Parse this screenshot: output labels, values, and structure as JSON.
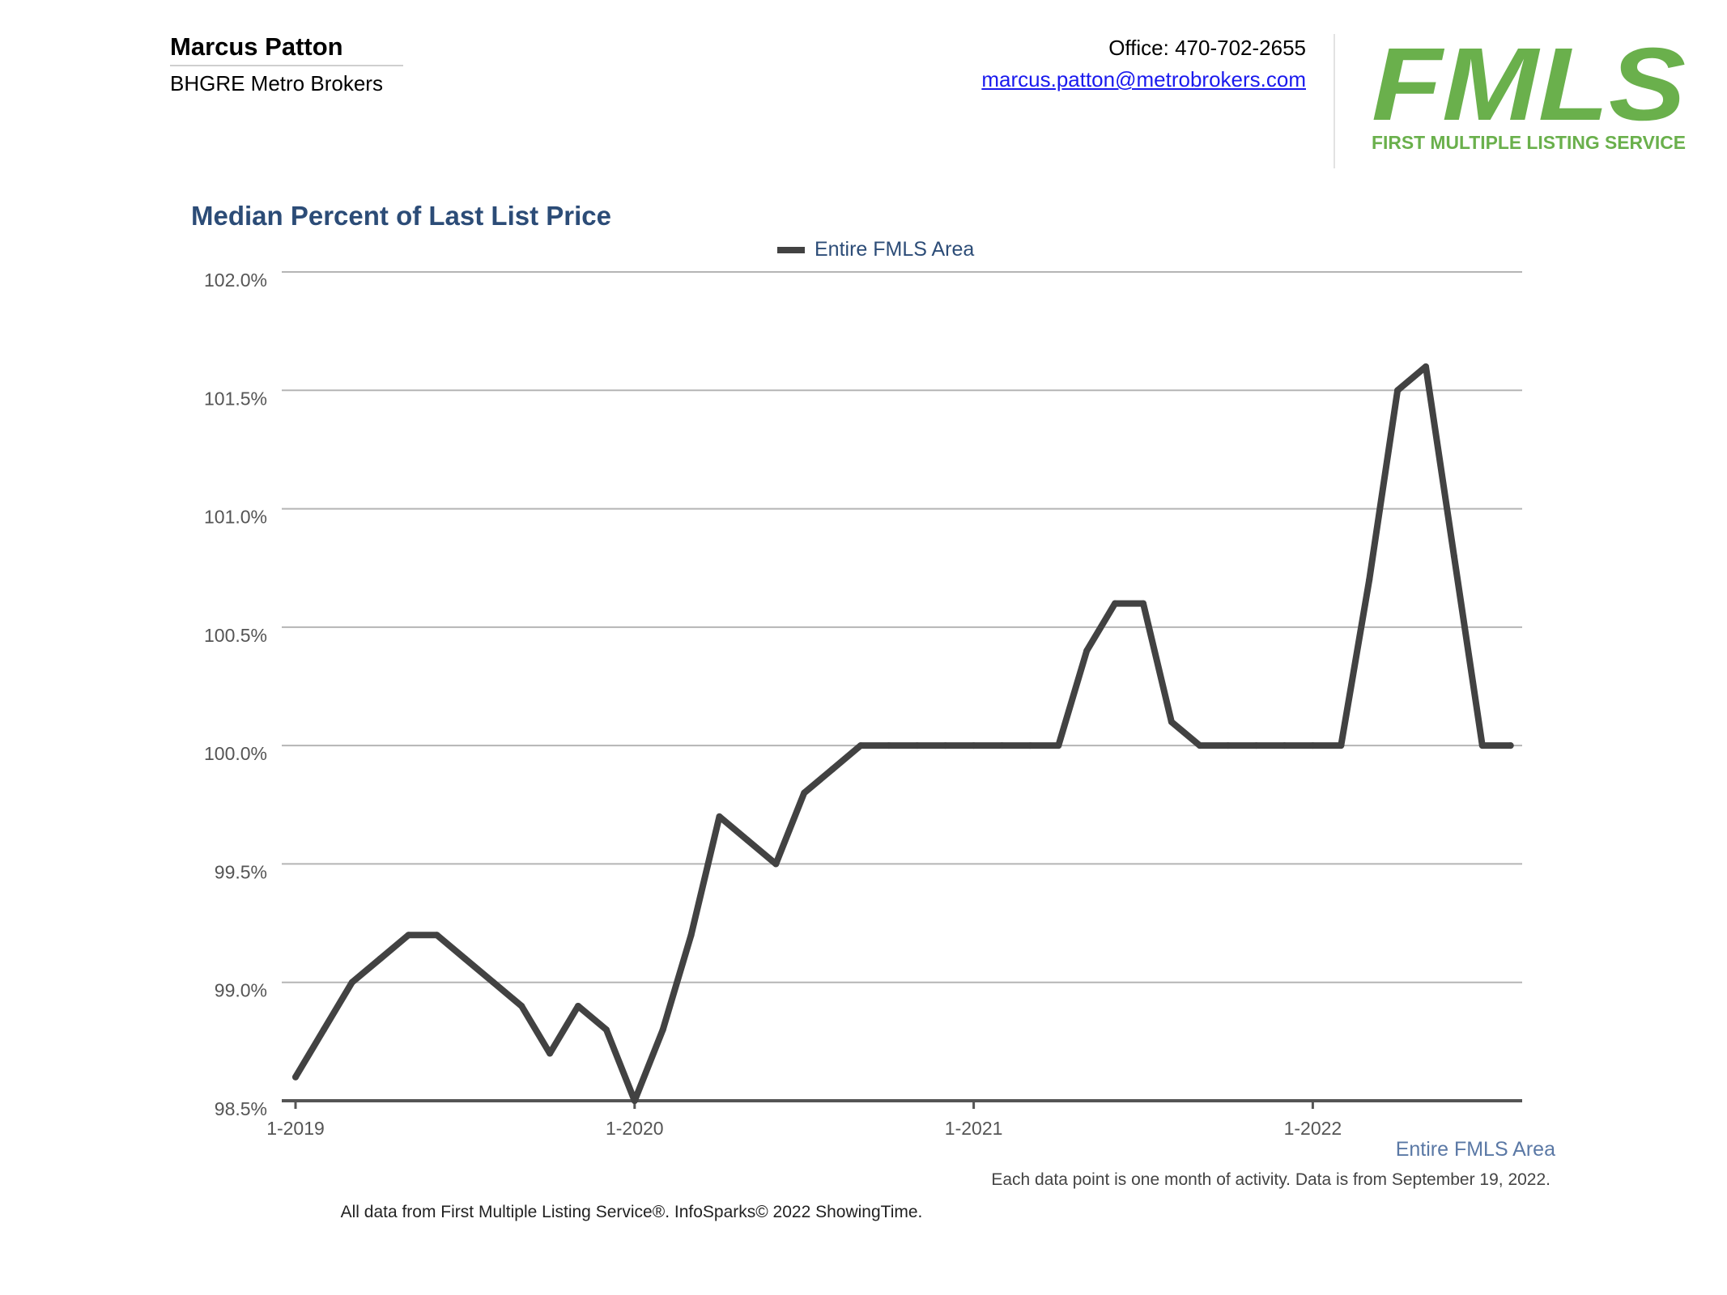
{
  "header": {
    "agent_name": "Marcus Patton",
    "agent_company": "BHGRE Metro Brokers",
    "office_phone": "Office: 470-702-2655",
    "email": "marcus.patton@metrobrokers.com"
  },
  "logo": {
    "wordmark": "FMLS",
    "tagline": "FIRST MULTIPLE LISTING SERVICE",
    "color": "#6ab04c"
  },
  "chart_data": {
    "type": "line",
    "title": "Median Percent of Last List Price",
    "xlabel": "",
    "ylabel": "",
    "ylim": [
      98.5,
      102.0
    ],
    "y_ticks": [
      "98.5%",
      "99.0%",
      "99.5%",
      "100.0%",
      "100.5%",
      "101.0%",
      "101.5%",
      "102.0%"
    ],
    "y_tick_values": [
      98.5,
      99.0,
      99.5,
      100.0,
      100.5,
      101.0,
      101.5,
      102.0
    ],
    "x_ticks": [
      "1-2019",
      "1-2020",
      "1-2021",
      "1-2022"
    ],
    "x": [
      "1-2019",
      "2-2019",
      "3-2019",
      "4-2019",
      "5-2019",
      "6-2019",
      "7-2019",
      "8-2019",
      "9-2019",
      "10-2019",
      "11-2019",
      "12-2019",
      "1-2020",
      "2-2020",
      "3-2020",
      "4-2020",
      "5-2020",
      "6-2020",
      "7-2020",
      "8-2020",
      "9-2020",
      "10-2020",
      "11-2020",
      "12-2020",
      "1-2021",
      "2-2021",
      "3-2021",
      "4-2021",
      "5-2021",
      "6-2021",
      "7-2021",
      "8-2021",
      "9-2021",
      "10-2021",
      "11-2021",
      "12-2021",
      "1-2022",
      "2-2022",
      "3-2022",
      "4-2022",
      "5-2022",
      "6-2022",
      "7-2022",
      "8-2022"
    ],
    "series": [
      {
        "name": "Entire FMLS Area",
        "color": "#424242",
        "values": [
          98.6,
          98.8,
          99.0,
          99.1,
          99.2,
          99.2,
          99.1,
          99.0,
          98.9,
          98.7,
          98.9,
          98.8,
          98.5,
          98.8,
          99.2,
          99.7,
          99.6,
          99.5,
          99.8,
          99.9,
          100.0,
          100.0,
          100.0,
          100.0,
          100.0,
          100.0,
          100.0,
          100.0,
          100.4,
          100.6,
          100.6,
          100.1,
          100.0,
          100.0,
          100.0,
          100.0,
          100.0,
          100.0,
          100.7,
          101.5,
          101.6,
          100.8,
          100.0,
          100.0
        ]
      }
    ],
    "grid": true,
    "legend": "top-center"
  },
  "footer": {
    "series_label": "Entire FMLS Area",
    "note": "Each data point is one month of activity. Data is from September 19, 2022.",
    "source": "All data from First Multiple Listing Service®. InfoSparks© 2022 ShowingTime."
  }
}
